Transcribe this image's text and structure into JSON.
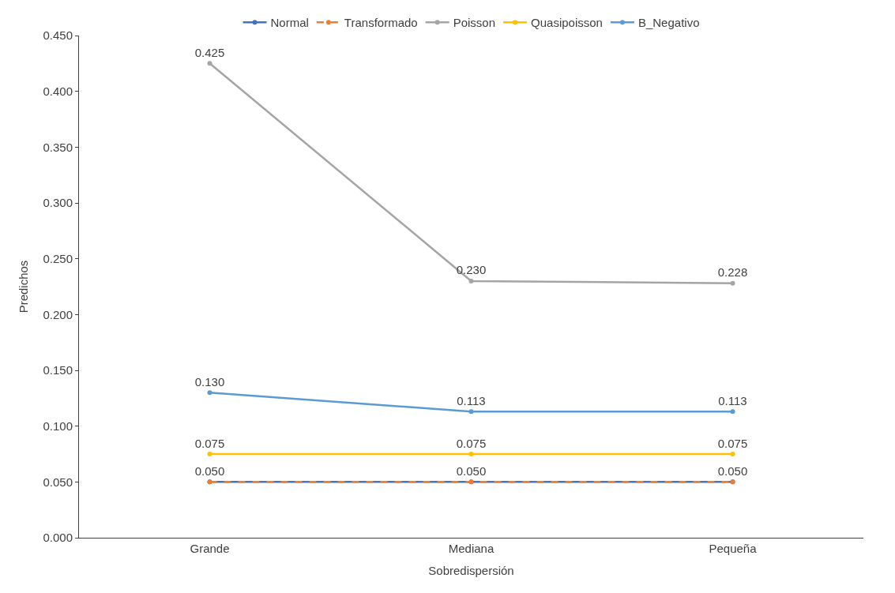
{
  "chart_data": {
    "type": "line",
    "xlabel": "Sobredispersión",
    "ylabel": "Predichos",
    "categories": [
      "Grande",
      "Mediana",
      "Pequeña"
    ],
    "series": [
      {
        "name": "Normal",
        "color": "#4472c4",
        "values": [
          0.05,
          0.05,
          0.05
        ],
        "line_style": "solid"
      },
      {
        "name": "Transformado",
        "color": "#ed7d31",
        "values": [
          0.05,
          0.05,
          0.05
        ],
        "line_style": "dashed",
        "value_labels": [
          "0.050",
          "0.050",
          "0.050"
        ]
      },
      {
        "name": "Poisson",
        "color": "#a5a5a5",
        "values": [
          0.425,
          0.23,
          0.228
        ],
        "line_style": "solid",
        "value_labels": [
          "0.425",
          "0.230",
          "0.228"
        ]
      },
      {
        "name": "Quasipoisson",
        "color": "#ffc000",
        "values": [
          0.075,
          0.075,
          0.075
        ],
        "line_style": "solid",
        "value_labels": [
          "0.075",
          "0.075",
          "0.075"
        ]
      },
      {
        "name": "B_Negativo",
        "color": "#5b9bd5",
        "values": [
          0.13,
          0.113,
          0.113
        ],
        "line_style": "solid",
        "value_labels": [
          "0.130",
          "0.113",
          "0.113"
        ]
      }
    ],
    "ylim": [
      0,
      0.45
    ],
    "yticks": [
      {
        "value": 0,
        "label": "0.000"
      },
      {
        "value": 0.05,
        "label": "0.050"
      },
      {
        "value": 0.1,
        "label": "0.100"
      },
      {
        "value": 0.15,
        "label": "0.150"
      },
      {
        "value": 0.2,
        "label": "0.200"
      },
      {
        "value": 0.25,
        "label": "0.250"
      },
      {
        "value": 0.3,
        "label": "0.300"
      },
      {
        "value": 0.35,
        "label": "0.350"
      },
      {
        "value": 0.4,
        "label": "0.400"
      },
      {
        "value": 0.45,
        "label": "0.450"
      }
    ],
    "legend": "top",
    "marker": "circle"
  }
}
